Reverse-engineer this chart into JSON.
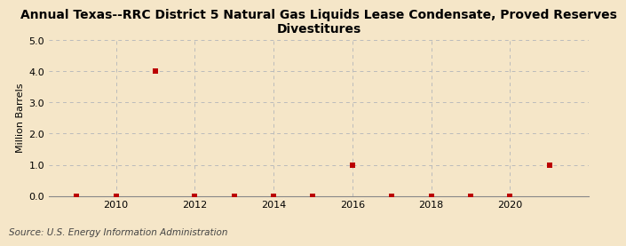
{
  "title": "Annual Texas--RRC District 5 Natural Gas Liquids Lease Condensate, Proved Reserves\nDivestitures",
  "ylabel": "Million Barrels",
  "source": "Source: U.S. Energy Information Administration",
  "background_color": "#f5e6c8",
  "years": [
    2009,
    2010,
    2011,
    2012,
    2013,
    2014,
    2015,
    2016,
    2017,
    2018,
    2019,
    2020,
    2021
  ],
  "values": [
    0.0,
    0.0,
    4.0,
    0.0,
    0.0,
    0.0,
    0.0,
    1.0,
    0.0,
    0.0,
    0.0,
    0.0,
    1.0
  ],
  "marker_color": "#bb0000",
  "marker_size": 4,
  "grid_color": "#bbbbbb",
  "ylim": [
    0.0,
    5.0
  ],
  "yticks": [
    0.0,
    1.0,
    2.0,
    3.0,
    4.0,
    5.0
  ],
  "xlim": [
    2008.3,
    2022.0
  ],
  "xticks": [
    2010,
    2012,
    2014,
    2016,
    2018,
    2020
  ],
  "title_fontsize": 10,
  "axis_fontsize": 8,
  "ylabel_fontsize": 8,
  "source_fontsize": 7.5
}
